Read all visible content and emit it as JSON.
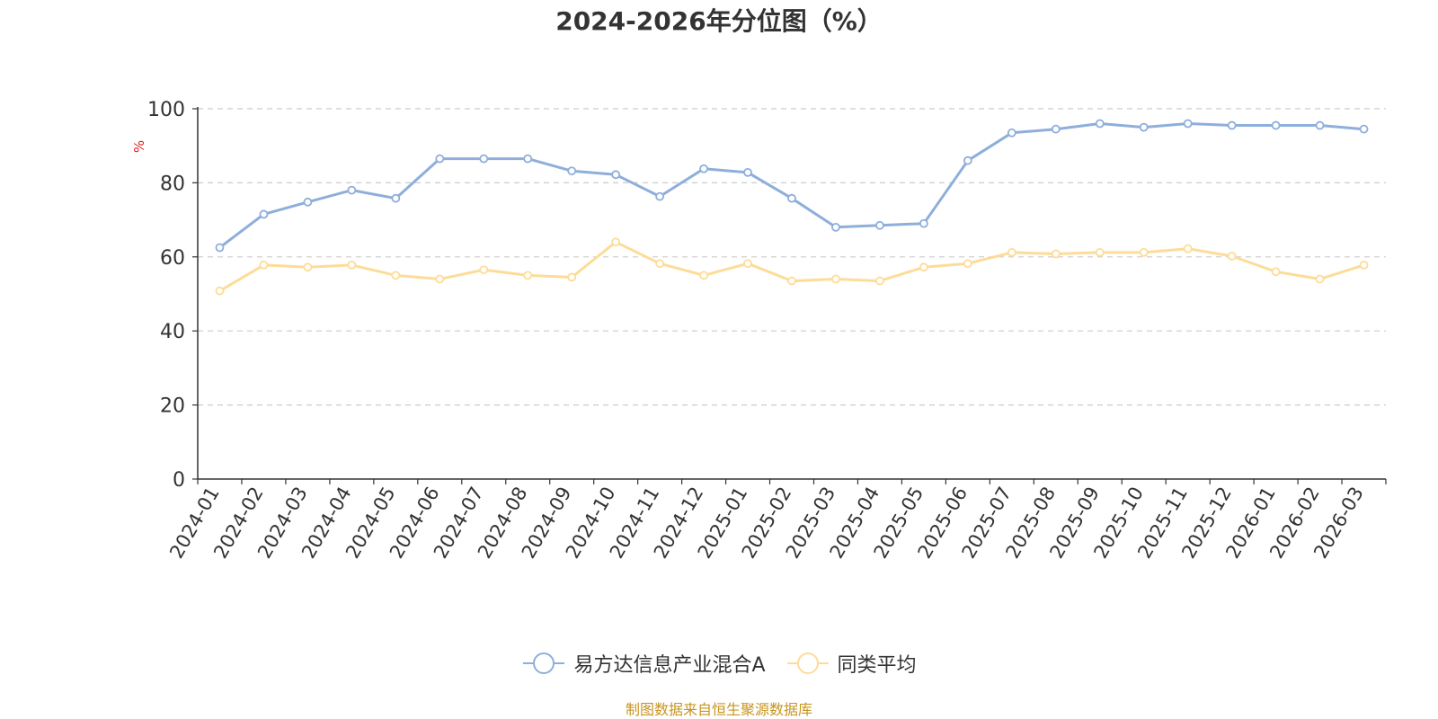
{
  "chart_data": {
    "type": "line",
    "title": "2024-2026年分位图（%）",
    "ylabel": "%",
    "xlabel": "",
    "ylim": [
      0,
      100
    ],
    "yticks": [
      0,
      20,
      40,
      60,
      80,
      100
    ],
    "grid": true,
    "legend_position": "bottom",
    "categories": [
      "2024-01",
      "2024-02",
      "2024-03",
      "2024-04",
      "2024-05",
      "2024-06",
      "2024-07",
      "2024-08",
      "2024-09",
      "2024-10",
      "2024-11",
      "2024-12",
      "2025-01",
      "2025-02",
      "2025-03",
      "2025-04",
      "2025-05",
      "2025-06",
      "2025-07",
      "2025-08",
      "2025-09",
      "2025-10",
      "2025-11",
      "2025-12",
      "2026-01",
      "2026-02",
      "2026-03"
    ],
    "series": [
      {
        "name": "易方达信息产业混合A",
        "color": "#8eaedb",
        "values": [
          62.5,
          71.5,
          74.8,
          78.0,
          75.8,
          86.5,
          86.5,
          86.5,
          83.2,
          82.2,
          76.3,
          83.8,
          82.8,
          75.8,
          68.0,
          68.5,
          69.0,
          86.0,
          93.5,
          94.5,
          96.0,
          95.0,
          96.0,
          95.5,
          95.5,
          95.5,
          94.5
        ]
      },
      {
        "name": "同类平均",
        "color": "#fddc98",
        "values": [
          50.8,
          57.8,
          57.2,
          57.8,
          55.0,
          54.0,
          56.5,
          55.0,
          54.5,
          64.0,
          58.2,
          55.0,
          58.2,
          53.5,
          54.0,
          53.5,
          57.2,
          58.2,
          61.2,
          60.8,
          61.2,
          61.2,
          62.2,
          60.2,
          56.0,
          54.0,
          57.8
        ]
      }
    ]
  },
  "source_note": "制图数据来自恒生聚源数据库"
}
